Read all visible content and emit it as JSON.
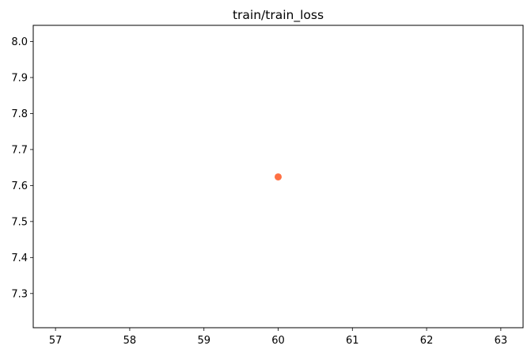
{
  "chart_data": {
    "type": "scatter",
    "title": "train/train_loss",
    "xlabel": "",
    "ylabel": "",
    "x_ticks": [
      57,
      58,
      59,
      60,
      61,
      62,
      63
    ],
    "y_ticks": [
      7.3,
      7.4,
      7.5,
      7.6,
      7.7,
      7.8,
      7.9,
      8.0
    ],
    "xlim": [
      56.7,
      63.3
    ],
    "ylim": [
      7.205,
      8.045
    ],
    "grid": false,
    "series": [
      {
        "color": "#ff7043",
        "points": [
          {
            "x": 60,
            "y": 7.624
          }
        ]
      }
    ]
  }
}
